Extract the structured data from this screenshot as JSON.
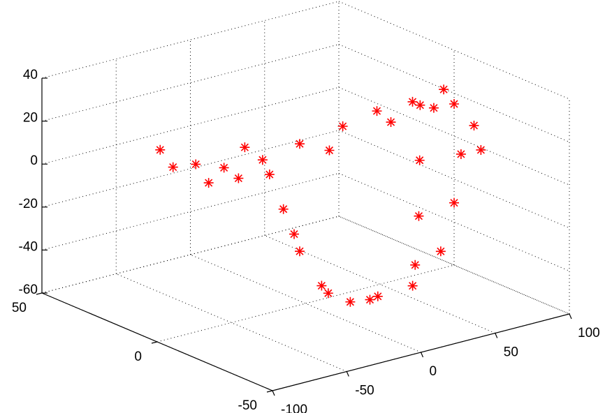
{
  "chart_data": {
    "type": "scatter3",
    "color": "#ff0000",
    "grid": true,
    "xlim": [
      -100,
      100
    ],
    "ylim": [
      -50,
      50
    ],
    "zlim": [
      -60,
      40
    ],
    "xticks": [
      -100,
      -50,
      0,
      50,
      100
    ],
    "yticks": [
      -50,
      0,
      50
    ],
    "zticks": [
      -60,
      -40,
      -20,
      0,
      20,
      40
    ],
    "x": [
      -98,
      -74,
      -55,
      -41,
      -29,
      -4,
      25,
      48,
      72,
      93,
      100,
      100,
      100,
      91,
      41,
      16,
      -1,
      3,
      -4,
      -1,
      -15,
      74,
      83,
      70,
      52,
      87,
      87,
      -80,
      -70,
      -53,
      2,
      45,
      77,
      0,
      9,
      20
    ],
    "y": [
      0,
      0,
      0,
      0,
      0,
      0,
      0,
      0,
      0,
      0,
      0,
      -3,
      0,
      0,
      -20,
      -21,
      -20,
      -5,
      0,
      9,
      6,
      -2,
      4,
      -4,
      -14,
      -17,
      -20,
      6,
      -3,
      -5,
      -9,
      -8,
      -6,
      5,
      -4,
      -15
    ],
    "z": [
      29,
      18,
      13,
      20,
      12,
      15,
      18,
      21,
      21,
      23,
      15,
      -7,
      -31,
      -52,
      -50,
      -50,
      -50,
      -50,
      -35,
      -20,
      0,
      20,
      -10,
      -30,
      -45,
      15,
      5,
      15,
      10,
      10,
      15,
      20,
      20,
      -30,
      -55,
      -55
    ]
  }
}
